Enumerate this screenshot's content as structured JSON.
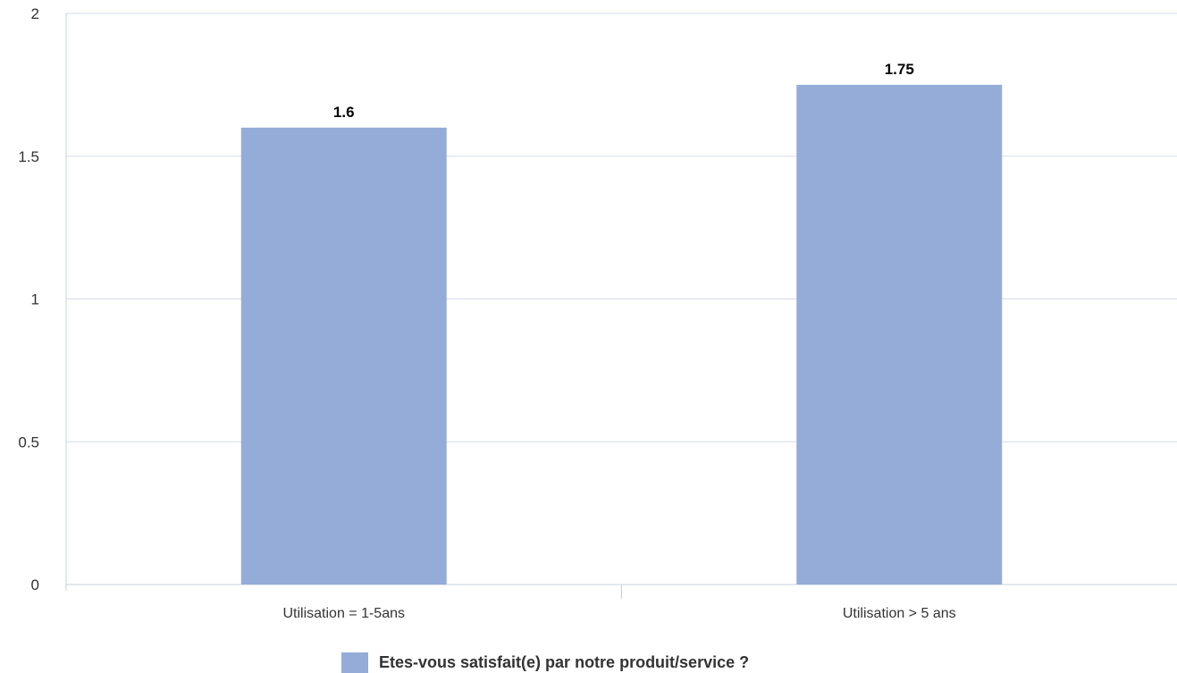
{
  "chart_data": {
    "type": "bar",
    "title": "",
    "xlabel": "",
    "ylabel": "",
    "categories": [
      "Utilisation = 1-5ans",
      "Utilisation > 5 ans"
    ],
    "series": [
      {
        "name": "Etes-vous satisfait(e) par notre produit/service ?",
        "values": [
          1.6,
          1.75
        ],
        "color": "#95acd8"
      }
    ],
    "data_labels": [
      "1.6",
      "1.75"
    ],
    "ylim": [
      0,
      2
    ],
    "yticks": [
      0,
      0.5,
      1,
      1.5,
      2
    ],
    "ytick_labels": [
      "0",
      "0.5",
      "1",
      "1.5",
      "2"
    ],
    "grid": true,
    "legend_position": "bottom-center",
    "colors": {
      "grid": "#d5dde8",
      "axis": "#c5d0de",
      "bar": "#95acd8"
    }
  }
}
